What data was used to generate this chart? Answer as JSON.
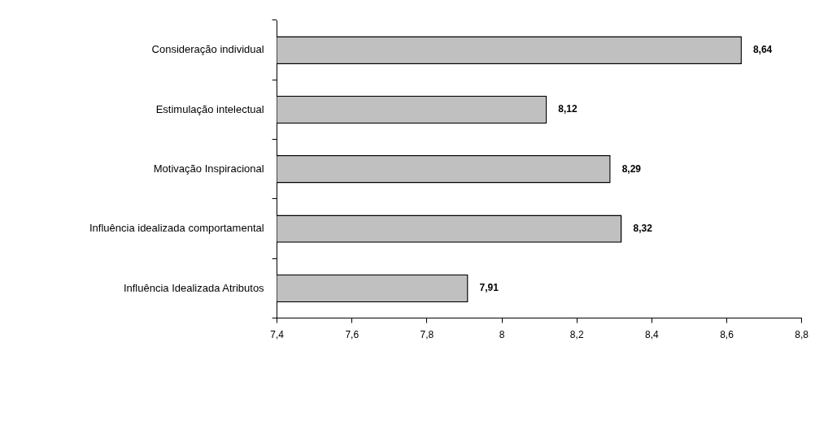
{
  "chart_data": {
    "type": "bar",
    "orientation": "horizontal",
    "categories": [
      "Consideração individual",
      "Estimulação intelectual",
      "Motivação Inspiracional",
      "Influência idealizada comportamental",
      "Influência Idealizada Atributos"
    ],
    "values": [
      8.64,
      8.12,
      8.29,
      8.32,
      7.91
    ],
    "value_labels": [
      "8,64",
      "8,12",
      "8,29",
      "8,32",
      "7,91"
    ],
    "color": "#c0c0c0",
    "xlim": [
      7.4,
      8.8
    ],
    "xticks": [
      {
        "value": 7.4,
        "label": "7,4"
      },
      {
        "value": 7.6,
        "label": "7,6"
      },
      {
        "value": 7.8,
        "label": "7,8"
      },
      8,
      {
        "value": 8.2,
        "label": "8,2"
      },
      {
        "value": 8.4,
        "label": "8,4"
      },
      {
        "value": 8.6,
        "label": "8,6"
      },
      {
        "value": 8.8,
        "label": "8,8"
      }
    ],
    "grid": false,
    "legend": false
  }
}
